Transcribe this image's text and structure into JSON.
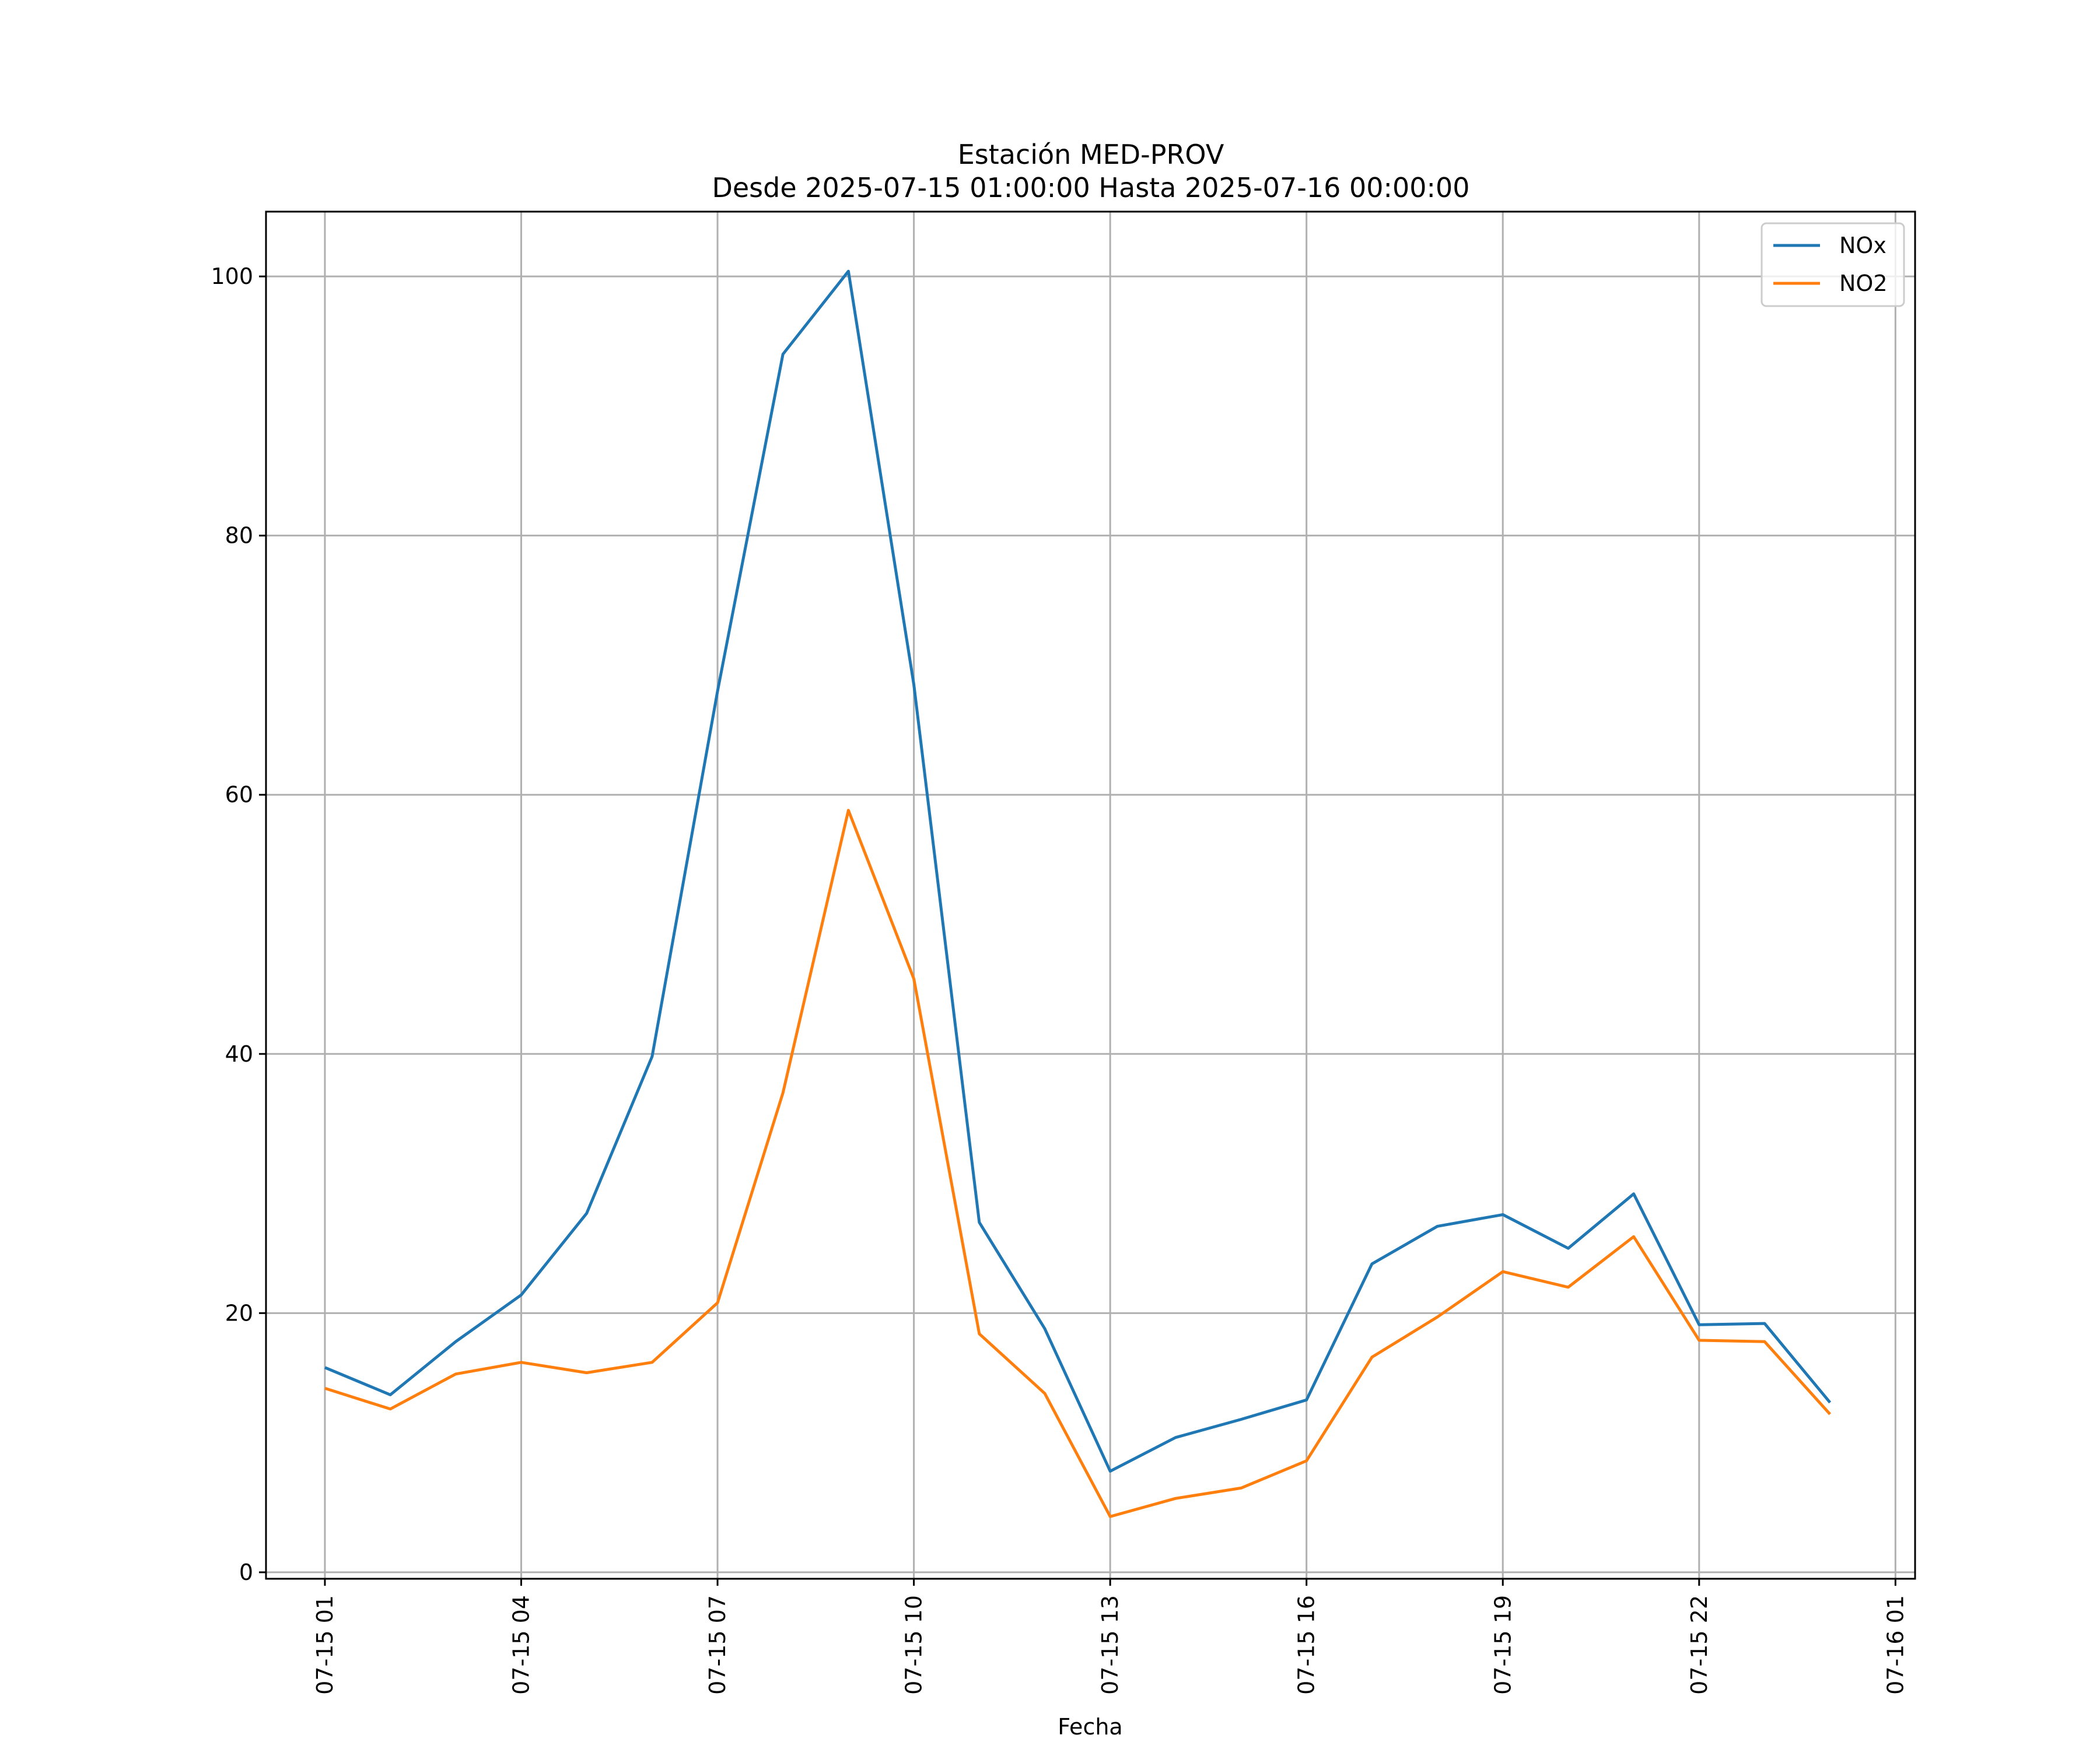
{
  "chart_data": {
    "type": "line",
    "title": "Estación MED-PROV",
    "subtitle": "Desde 2025-07-15 01:00:00 Hasta 2025-07-16 00:00:00",
    "xlabel": "Fecha",
    "ylabel": "",
    "x": [
      "07-15 01",
      "07-15 02",
      "07-15 03",
      "07-15 04",
      "07-15 05",
      "07-15 06",
      "07-15 07",
      "07-15 08",
      "07-15 09",
      "07-15 10",
      "07-15 11",
      "07-15 12",
      "07-15 13",
      "07-15 14",
      "07-15 15",
      "07-15 16",
      "07-15 17",
      "07-15 18",
      "07-15 19",
      "07-15 20",
      "07-15 21",
      "07-15 22",
      "07-15 23",
      "07-16 00"
    ],
    "x_ticks": [
      "07-15 01",
      "07-15 04",
      "07-15 07",
      "07-15 10",
      "07-15 13",
      "07-15 16",
      "07-15 19",
      "07-15 22",
      "07-16 01"
    ],
    "xlim_hours": [
      -0.9,
      24.3
    ],
    "y_ticks": [
      "0",
      "20",
      "40",
      "60",
      "80",
      "100"
    ],
    "ylim": [
      -0.5,
      105
    ],
    "grid": true,
    "legend_position": "top-right",
    "series": [
      {
        "name": "NOx",
        "color": "#1f77b4",
        "values": [
          15.8,
          13.7,
          17.8,
          21.4,
          27.7,
          39.8,
          68.0,
          94.0,
          100.4,
          68.5,
          27.0,
          18.8,
          7.8,
          10.4,
          11.8,
          13.3,
          23.8,
          26.7,
          27.6,
          25.0,
          29.2,
          19.1,
          19.2,
          13.1
        ]
      },
      {
        "name": "NO2",
        "color": "#ff7f0e",
        "values": [
          14.2,
          12.6,
          15.3,
          16.2,
          15.4,
          16.2,
          20.8,
          37.0,
          58.8,
          45.8,
          18.4,
          13.8,
          4.3,
          5.7,
          6.5,
          8.6,
          16.6,
          19.7,
          23.2,
          22.0,
          25.9,
          17.9,
          17.8,
          12.2
        ]
      }
    ]
  }
}
